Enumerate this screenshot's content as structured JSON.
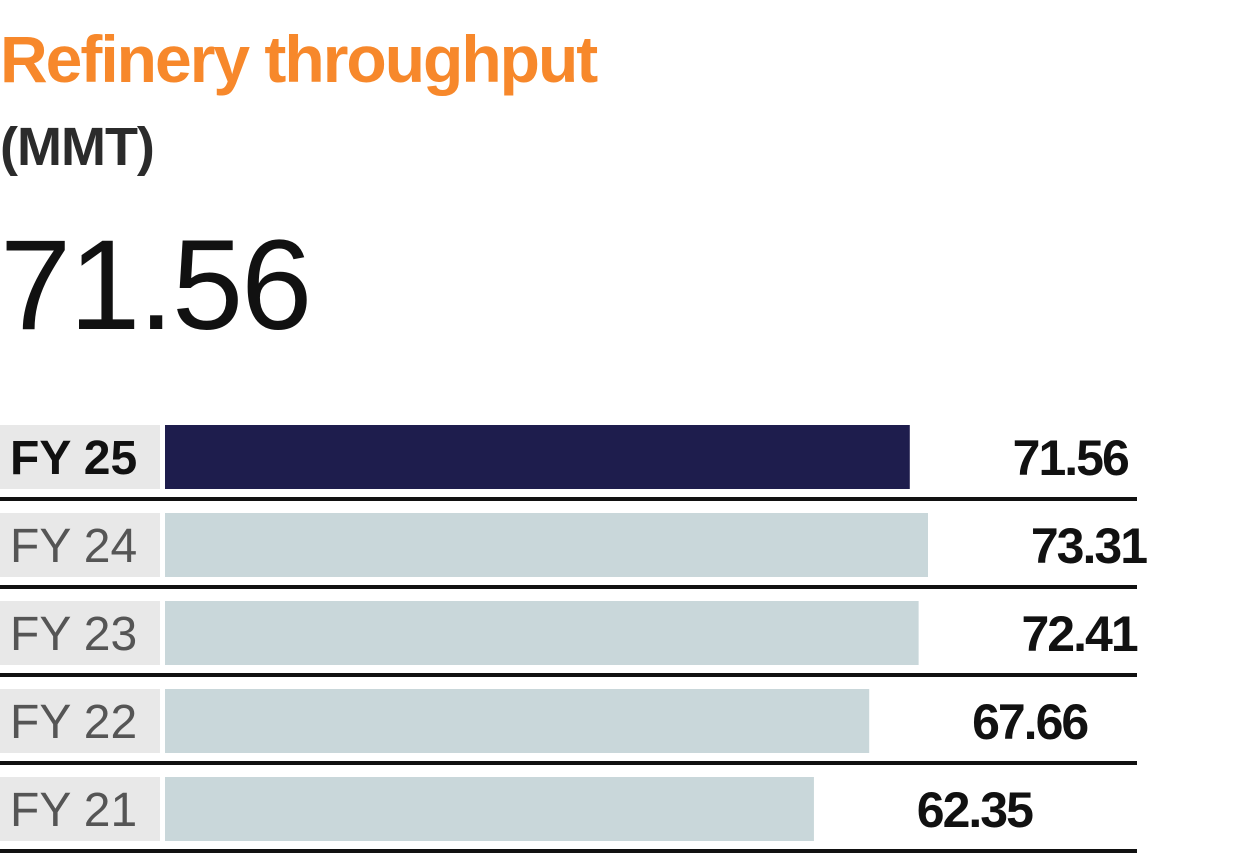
{
  "title": "Refinery throughput",
  "unit": "(MMT)",
  "headline_value": "71.56",
  "colors": {
    "title": "#F7882B",
    "highlight_bar": "#1E1D4D",
    "bar": "#C9D7DA",
    "label_bg": "#E8E8E8",
    "rule": "#111111",
    "text_highlight": "#111111",
    "text_muted": "#555555"
  },
  "chart_data": {
    "type": "bar",
    "orientation": "horizontal",
    "categories": [
      "FY 25",
      "FY 24",
      "FY 23",
      "FY 22",
      "FY 21"
    ],
    "values": [
      71.56,
      73.31,
      72.41,
      67.66,
      62.35
    ],
    "value_labels": [
      "71.56",
      "73.31",
      "72.41",
      "67.66",
      "62.35"
    ],
    "highlight": "FY 25",
    "xlim": [
      0,
      73.31
    ],
    "grid": false,
    "legend": "none"
  }
}
